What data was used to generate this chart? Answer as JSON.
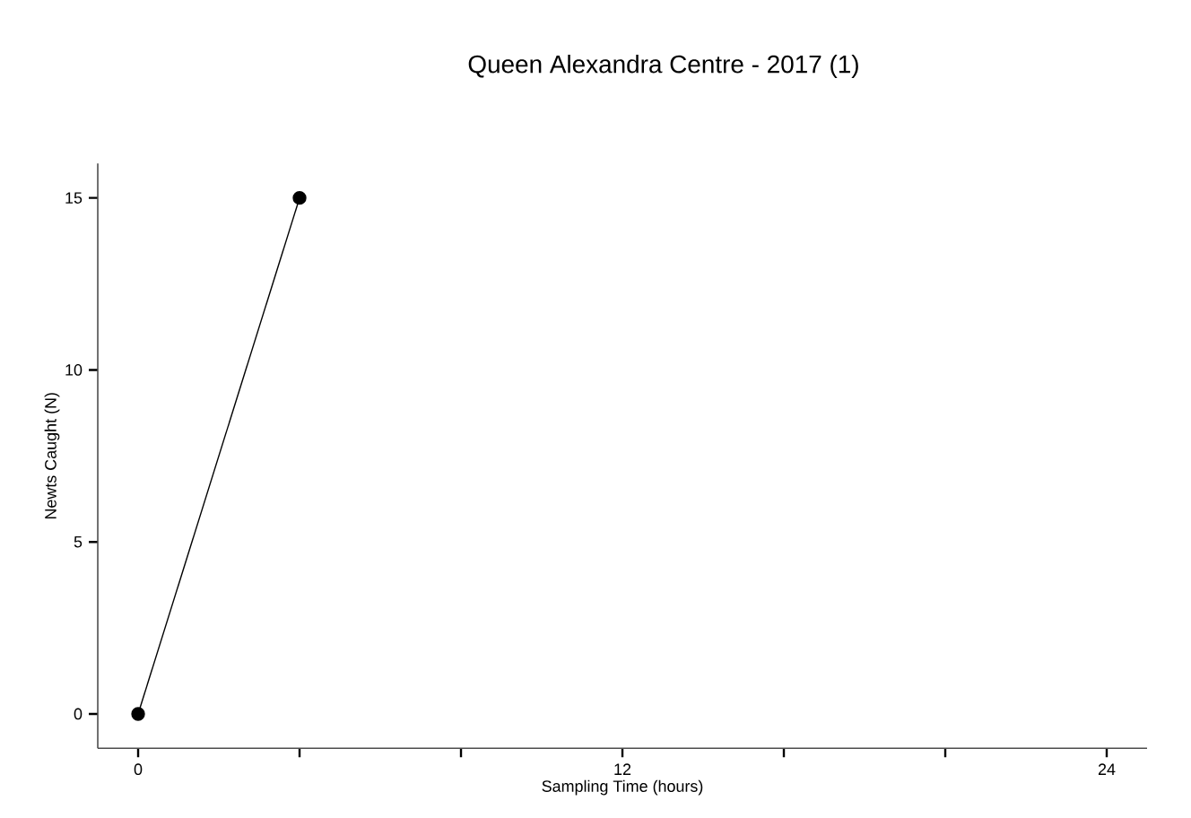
{
  "chart_data": {
    "type": "line",
    "title": "Queen Alexandra Centre - 2017 (1)",
    "xlabel": "Sampling Time (hours)",
    "ylabel": "Newts Caught (N)",
    "x": [
      0,
      4
    ],
    "series": [
      {
        "color": "#000000",
        "values": [
          0,
          15
        ]
      }
    ],
    "xlim": [
      -1,
      25
    ],
    "ylim": [
      -1,
      16
    ],
    "xticks": [
      0,
      {
        "value": 4,
        "label": null
      },
      {
        "value": 8,
        "label": null
      },
      12,
      {
        "value": 16,
        "label": null
      },
      {
        "value": 20,
        "label": null
      },
      24
    ],
    "yticks": [
      0,
      5,
      10,
      15
    ],
    "marker": "circle",
    "line_style": "solid"
  }
}
